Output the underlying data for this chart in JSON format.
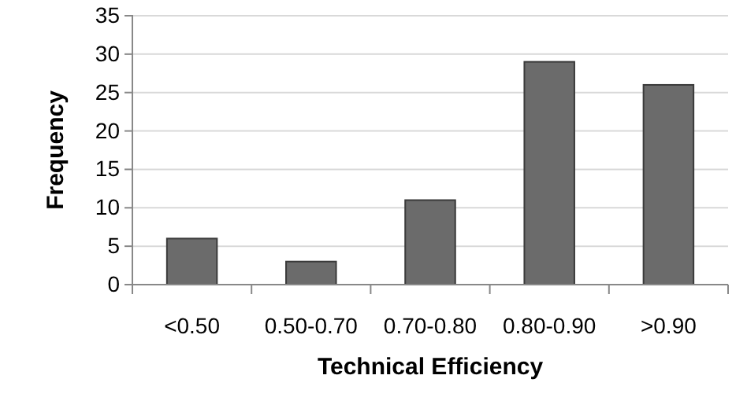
{
  "chart_data": {
    "type": "bar",
    "xlabel": "Technical Efficiency",
    "ylabel": "Frequency",
    "categories": [
      "<0.50",
      "0.50-0.70",
      "0.70-0.80",
      "0.80-0.90",
      ">0.90"
    ],
    "values": [
      6,
      3,
      11,
      29,
      26
    ],
    "color": "#6b6b6b",
    "ylim": [
      0,
      35
    ],
    "yticks": [
      0,
      5,
      10,
      15,
      20,
      25,
      30,
      35
    ],
    "grid": "y"
  }
}
